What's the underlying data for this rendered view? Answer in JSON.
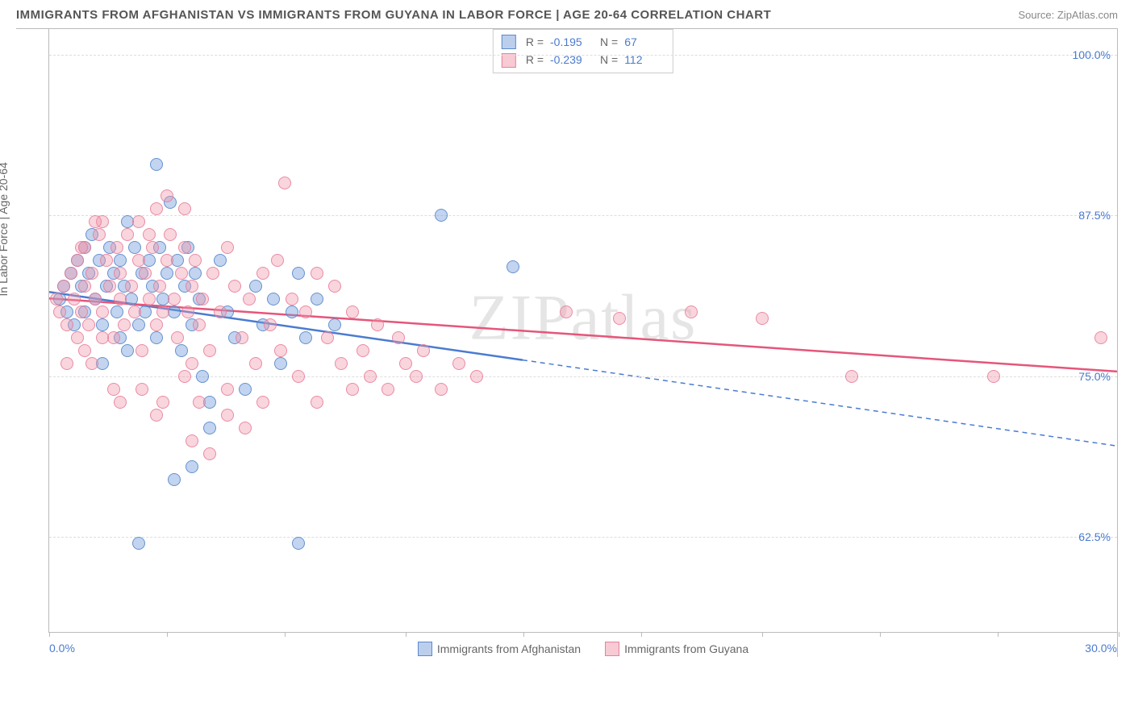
{
  "title": "IMMIGRANTS FROM AFGHANISTAN VS IMMIGRANTS FROM GUYANA IN LABOR FORCE | AGE 20-64 CORRELATION CHART",
  "source": "Source: ZipAtlas.com",
  "watermark": "ZIPatlas",
  "yaxis_title": "In Labor Force | Age 20-64",
  "chart": {
    "type": "scatter",
    "xlim": [
      0,
      30
    ],
    "ylim": [
      55,
      102
    ],
    "xtick_positions": [
      0,
      3.3,
      6.6,
      10,
      13.3,
      16.6,
      20,
      23.3,
      26.6,
      30
    ],
    "ygrid": [
      {
        "val": 100.0,
        "label": "100.0%"
      },
      {
        "val": 87.5,
        "label": "87.5%"
      },
      {
        "val": 75.0,
        "label": "75.0%"
      },
      {
        "val": 62.5,
        "label": "62.5%"
      }
    ],
    "xlabel_min": "0.0%",
    "xlabel_max": "30.0%",
    "series": [
      {
        "name_key": "legend.afghan",
        "color_class": "blue",
        "fill": "rgba(120,160,220,0.45)",
        "stroke": "#4a7bd0",
        "R": "-0.195",
        "N": "67",
        "trend": {
          "x1": 0,
          "y1": 81.5,
          "x2": 13.3,
          "y2": 76.2,
          "dash_x2": 30,
          "dash_y2": 69.5
        },
        "points": [
          [
            0.3,
            81
          ],
          [
            0.4,
            82
          ],
          [
            0.5,
            80
          ],
          [
            0.6,
            83
          ],
          [
            0.7,
            79
          ],
          [
            0.8,
            84
          ],
          [
            0.9,
            82
          ],
          [
            1.0,
            85
          ],
          [
            1.0,
            80
          ],
          [
            1.1,
            83
          ],
          [
            1.2,
            86
          ],
          [
            1.3,
            81
          ],
          [
            1.4,
            84
          ],
          [
            1.5,
            79
          ],
          [
            1.6,
            82
          ],
          [
            1.7,
            85
          ],
          [
            1.8,
            83
          ],
          [
            1.9,
            80
          ],
          [
            2.0,
            84
          ],
          [
            2.0,
            78
          ],
          [
            2.1,
            82
          ],
          [
            2.2,
            87
          ],
          [
            2.3,
            81
          ],
          [
            2.4,
            85
          ],
          [
            2.5,
            79
          ],
          [
            2.6,
            83
          ],
          [
            2.7,
            80
          ],
          [
            2.8,
            84
          ],
          [
            2.9,
            82
          ],
          [
            3.0,
            91.5
          ],
          [
            3.0,
            78
          ],
          [
            3.1,
            85
          ],
          [
            3.2,
            81
          ],
          [
            3.3,
            83
          ],
          [
            3.4,
            88.5
          ],
          [
            3.5,
            80
          ],
          [
            3.6,
            84
          ],
          [
            3.7,
            77
          ],
          [
            3.8,
            82
          ],
          [
            3.9,
            85
          ],
          [
            4.0,
            68
          ],
          [
            4.0,
            79
          ],
          [
            4.1,
            83
          ],
          [
            4.2,
            81
          ],
          [
            4.3,
            75
          ],
          [
            4.5,
            73
          ],
          [
            4.8,
            84
          ],
          [
            5.0,
            80
          ],
          [
            5.2,
            78
          ],
          [
            5.5,
            74
          ],
          [
            5.8,
            82
          ],
          [
            6.0,
            79
          ],
          [
            6.3,
            81
          ],
          [
            6.5,
            76
          ],
          [
            6.8,
            80
          ],
          [
            7.0,
            83
          ],
          [
            7.2,
            78
          ],
          [
            7.5,
            81
          ],
          [
            8.0,
            79
          ],
          [
            2.5,
            62
          ],
          [
            7.0,
            62
          ],
          [
            11.0,
            87.5
          ],
          [
            13.0,
            83.5
          ],
          [
            4.5,
            71
          ],
          [
            3.5,
            67
          ],
          [
            1.5,
            76
          ],
          [
            2.2,
            77
          ]
        ]
      },
      {
        "name_key": "legend.guyana",
        "color_class": "pink",
        "fill": "rgba(240,150,170,0.4)",
        "stroke": "#e5567a",
        "R": "-0.239",
        "N": "112",
        "trend": {
          "x1": 0,
          "y1": 81.0,
          "x2": 30,
          "y2": 75.3
        },
        "points": [
          [
            0.2,
            81
          ],
          [
            0.3,
            80
          ],
          [
            0.4,
            82
          ],
          [
            0.5,
            79
          ],
          [
            0.6,
            83
          ],
          [
            0.7,
            81
          ],
          [
            0.8,
            84
          ],
          [
            0.9,
            80
          ],
          [
            1.0,
            82
          ],
          [
            1.0,
            85
          ],
          [
            1.1,
            79
          ],
          [
            1.2,
            83
          ],
          [
            1.3,
            81
          ],
          [
            1.4,
            86
          ],
          [
            1.5,
            80
          ],
          [
            1.6,
            84
          ],
          [
            1.7,
            82
          ],
          [
            1.8,
            78
          ],
          [
            1.9,
            85
          ],
          [
            2.0,
            81
          ],
          [
            2.0,
            83
          ],
          [
            2.1,
            79
          ],
          [
            2.2,
            86
          ],
          [
            2.3,
            82
          ],
          [
            2.4,
            80
          ],
          [
            2.5,
            84
          ],
          [
            2.6,
            77
          ],
          [
            2.7,
            83
          ],
          [
            2.8,
            81
          ],
          [
            2.9,
            85
          ],
          [
            3.0,
            79
          ],
          [
            3.0,
            88
          ],
          [
            3.1,
            82
          ],
          [
            3.2,
            80
          ],
          [
            3.3,
            84
          ],
          [
            3.4,
            86
          ],
          [
            3.5,
            81
          ],
          [
            3.6,
            78
          ],
          [
            3.7,
            83
          ],
          [
            3.8,
            85
          ],
          [
            3.9,
            80
          ],
          [
            4.0,
            82
          ],
          [
            4.0,
            76
          ],
          [
            4.1,
            84
          ],
          [
            4.2,
            79
          ],
          [
            4.3,
            81
          ],
          [
            4.5,
            77
          ],
          [
            4.6,
            83
          ],
          [
            4.8,
            80
          ],
          [
            5.0,
            85
          ],
          [
            5.0,
            74
          ],
          [
            5.2,
            82
          ],
          [
            5.4,
            78
          ],
          [
            5.6,
            81
          ],
          [
            5.8,
            76
          ],
          [
            6.0,
            83
          ],
          [
            6.2,
            79
          ],
          [
            6.4,
            84
          ],
          [
            6.5,
            77
          ],
          [
            6.6,
            90
          ],
          [
            6.8,
            81
          ],
          [
            7.0,
            75
          ],
          [
            7.2,
            80
          ],
          [
            7.5,
            83
          ],
          [
            7.8,
            78
          ],
          [
            8.0,
            82
          ],
          [
            8.2,
            76
          ],
          [
            8.5,
            80
          ],
          [
            8.8,
            77
          ],
          [
            9.0,
            75
          ],
          [
            9.2,
            79
          ],
          [
            9.5,
            74
          ],
          [
            9.8,
            78
          ],
          [
            10.0,
            76
          ],
          [
            10.3,
            75
          ],
          [
            10.5,
            77
          ],
          [
            11.0,
            74
          ],
          [
            11.5,
            76
          ],
          [
            12.0,
            75
          ],
          [
            2.5,
            87
          ],
          [
            3.3,
            89
          ],
          [
            3.8,
            88
          ],
          [
            2.0,
            73
          ],
          [
            3.0,
            72
          ],
          [
            4.0,
            70
          ],
          [
            4.5,
            69
          ],
          [
            5.5,
            71
          ],
          [
            1.5,
            87
          ],
          [
            2.8,
            86
          ],
          [
            14.5,
            80
          ],
          [
            16.0,
            79.5
          ],
          [
            18.0,
            80
          ],
          [
            20.0,
            79.5
          ],
          [
            22.5,
            75
          ],
          [
            26.5,
            75
          ],
          [
            29.5,
            78
          ],
          [
            1.8,
            74
          ],
          [
            2.6,
            74
          ],
          [
            3.2,
            73
          ],
          [
            3.8,
            75
          ],
          [
            4.2,
            73
          ],
          [
            5.0,
            72
          ],
          [
            6.0,
            73
          ],
          [
            7.5,
            73
          ],
          [
            8.5,
            74
          ],
          [
            1.0,
            77
          ],
          [
            1.5,
            78
          ],
          [
            0.8,
            78
          ],
          [
            0.5,
            76
          ],
          [
            1.2,
            76
          ],
          [
            0.9,
            85
          ],
          [
            1.3,
            87
          ]
        ]
      }
    ]
  },
  "legend": {
    "afghan": "Immigrants from Afghanistan",
    "guyana": "Immigrants from Guyana"
  },
  "stats_labels": {
    "R": "R =",
    "N": "N ="
  }
}
